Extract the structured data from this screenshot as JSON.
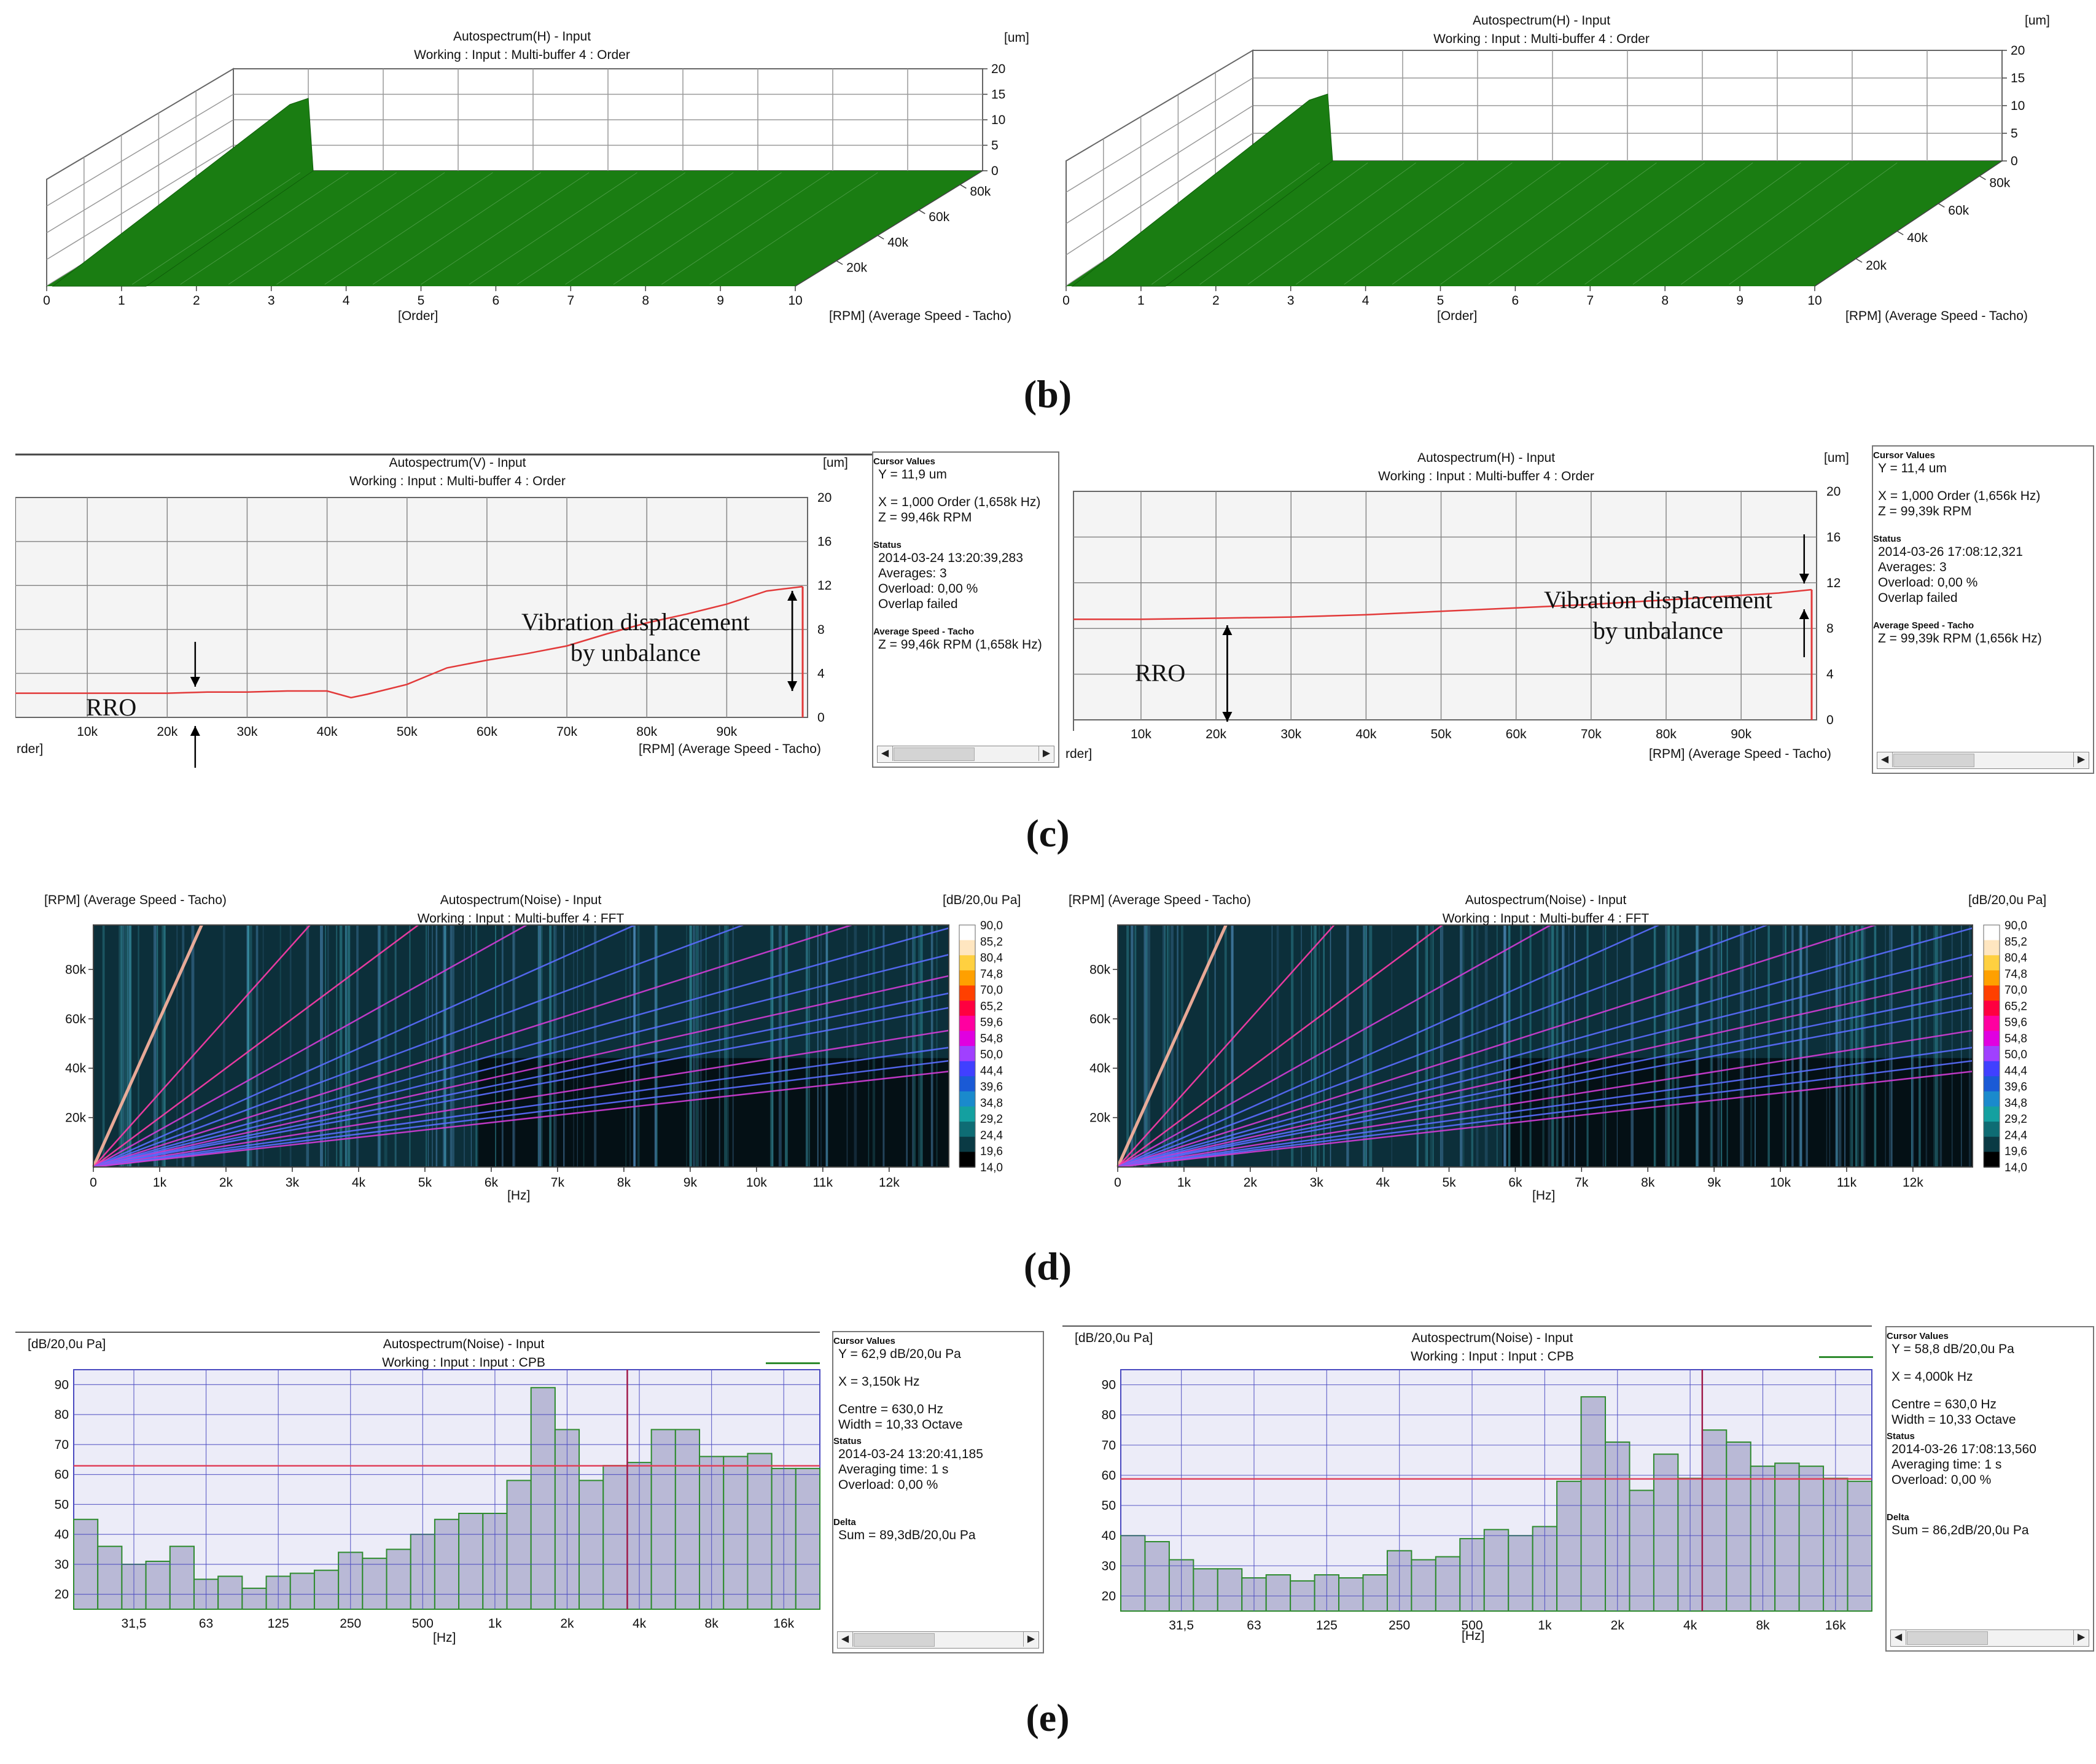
{
  "figure_labels": {
    "b": "(b)",
    "c": "(c)",
    "d": "(d)",
    "e": "(e)"
  },
  "colors": {
    "surface": "#1a7d12",
    "trace_red": "#e23a3a",
    "bar_fill": "#b9b9d6",
    "bar_edge": "#2e8b2e",
    "grid": "#7a7a7a",
    "spec_bg": "#0c2f3a"
  },
  "annotations": {
    "c_left_vib": "Vibration displacement\nby unbalance",
    "c_left_rro": "RRO",
    "c_right_vib": "Vibration displacement\nby unbalance",
    "c_right_rro": "RRO"
  },
  "chart_data": [
    {
      "id": "b_left",
      "type": "area",
      "title": "Autospectrum(H) - Input",
      "subtitle": "Working : Input : Multi-buffer 4 : Order",
      "zlabel": "[um]",
      "xlabel": "[Order]",
      "ylabel": "[RPM] (Average Speed - Tacho)",
      "x_ticks": [
        "0",
        "1",
        "2",
        "3",
        "4",
        "5",
        "6",
        "7",
        "8",
        "9",
        "10"
      ],
      "z_ticks": [
        "0",
        "5",
        "10",
        "15",
        "20"
      ],
      "y_ticks": [
        "20k",
        "40k",
        "60k",
        "80k"
      ],
      "peak": {
        "order": 1,
        "rpm_k": 99,
        "amplitude_um": 13
      }
    },
    {
      "id": "b_right",
      "type": "area",
      "title": "Autospectrum(H) - Input",
      "subtitle": "Working : Input : Multi-buffer 4 : Order",
      "zlabel": "[um]",
      "xlabel": "[Order]",
      "ylabel": "[RPM] (Average Speed - Tacho)",
      "x_ticks": [
        "0",
        "1",
        "2",
        "3",
        "4",
        "5",
        "6",
        "7",
        "8",
        "9",
        "10"
      ],
      "z_ticks": [
        "0",
        "5",
        "10",
        "15",
        "20"
      ],
      "y_ticks": [
        "20k",
        "40k",
        "60k",
        "80k"
      ],
      "peak": {
        "order": 1,
        "rpm_k": 99,
        "amplitude_um": 11
      }
    },
    {
      "id": "c_left",
      "type": "line",
      "title": "Autospectrum(V) - Input",
      "subtitle": "Working : Input : Multi-buffer 4 : Order",
      "unit": "[um]",
      "xlabel": "[RPM] (Average Speed - Tacho)",
      "xlabel_left": "rder]",
      "x_ticks": [
        "10k",
        "20k",
        "30k",
        "40k",
        "50k",
        "60k",
        "70k",
        "80k",
        "90k"
      ],
      "y_ticks": [
        "0",
        "4",
        "8",
        "12",
        "16",
        "20"
      ],
      "xlim": [
        1,
        99.5
      ],
      "ylim": [
        0,
        20
      ],
      "x": [
        1,
        10,
        20,
        25,
        30,
        35,
        40,
        43,
        45,
        50,
        55,
        60,
        65,
        70,
        75,
        80,
        85,
        90,
        95,
        99.5
      ],
      "y": [
        2.2,
        2.2,
        2.2,
        2.3,
        2.3,
        2.4,
        2.4,
        1.8,
        2.1,
        3.0,
        4.5,
        5.2,
        5.8,
        6.5,
        7.6,
        8.6,
        9.4,
        10.3,
        11.5,
        11.9
      ],
      "cursor": {
        "header": "Cursor Values",
        "y": "Y = 11,9 um",
        "x": "X = 1,000 Order  (1,658k Hz)",
        "z": "Z = 99,46k RPM"
      },
      "status": {
        "header": "Status",
        "date": "2014-03-24  13:20:39,283",
        "averages": "Averages: 3",
        "overload": "Overload:   0,00 %",
        "overlap": "Overlap failed"
      },
      "speed": {
        "header": "Average Speed - Tacho",
        "z": "Z = 99,46k RPM (1,658k Hz)"
      }
    },
    {
      "id": "c_right",
      "type": "line",
      "title": "Autospectrum(H) - Input",
      "subtitle": "Working : Input : Multi-buffer 4 : Order",
      "unit": "[um]",
      "xlabel": "[RPM] (Average Speed - Tacho)",
      "xlabel_left": "rder]",
      "x_ticks": [
        "10k",
        "20k",
        "30k",
        "40k",
        "50k",
        "60k",
        "70k",
        "80k",
        "90k"
      ],
      "y_ticks": [
        "0",
        "4",
        "8",
        "12",
        "16",
        "20"
      ],
      "xlim": [
        1,
        99.4
      ],
      "ylim": [
        0,
        20
      ],
      "x": [
        1,
        10,
        20,
        30,
        40,
        50,
        60,
        70,
        80,
        90,
        95,
        99.4
      ],
      "y": [
        8.8,
        8.8,
        8.9,
        9.0,
        9.2,
        9.5,
        9.8,
        10.1,
        10.5,
        10.9,
        11.1,
        11.4
      ],
      "cursor": {
        "header": "Cursor Values",
        "y": "Y = 11,4 um",
        "x": "X = 1,000 Order  (1,656k Hz)",
        "z": "Z = 99,39k RPM"
      },
      "status": {
        "header": "Status",
        "date": "2014-03-26  17:08:12,321",
        "averages": "Averages: 3",
        "overload": "Overload:   0,00 %",
        "overlap": "Overlap failed"
      },
      "speed": {
        "header": "Average Speed - Tacho",
        "z": "Z = 99,39k RPM (1,656k Hz)"
      }
    },
    {
      "id": "d_left",
      "type": "heatmap",
      "title": "Autospectrum(Noise) - Input",
      "subtitle": "Working : Input : Multi-buffer 4 : FFT",
      "ylabel_top": "[RPM] (Average Speed - Tacho)",
      "unit": "[dB/20,0u Pa]",
      "xlabel": "[Hz]",
      "x_ticks": [
        "0",
        "1k",
        "2k",
        "3k",
        "4k",
        "5k",
        "6k",
        "7k",
        "8k",
        "9k",
        "10k",
        "11k",
        "12k"
      ],
      "y_ticks": [
        "20k",
        "40k",
        "60k",
        "80k"
      ],
      "colorbar_ticks": [
        "90,0",
        "85,2",
        "80,4",
        "74,8",
        "70,0",
        "65,2",
        "59,6",
        "54,8",
        "50,0",
        "44,4",
        "39,6",
        "34,8",
        "29,2",
        "24,4",
        "19,6",
        "14,0"
      ],
      "xlim": [
        0,
        12900
      ],
      "ylim": [
        0,
        98000
      ]
    },
    {
      "id": "d_right",
      "type": "heatmap",
      "title": "Autospectrum(Noise) - Input",
      "subtitle": "Working : Input : Multi-buffer 4 : FFT",
      "ylabel_top": "[RPM] (Average Speed - Tacho)",
      "unit": "[dB/20,0u Pa]",
      "xlabel": "[Hz]",
      "x_ticks": [
        "0",
        "1k",
        "2k",
        "3k",
        "4k",
        "5k",
        "6k",
        "7k",
        "8k",
        "9k",
        "10k",
        "11k",
        "12k"
      ],
      "y_ticks": [
        "20k",
        "40k",
        "60k",
        "80k"
      ],
      "colorbar_ticks": [
        "90,0",
        "85,2",
        "80,4",
        "74,8",
        "70,0",
        "65,2",
        "59,6",
        "54,8",
        "50,0",
        "44,4",
        "39,6",
        "34,8",
        "29,2",
        "24,4",
        "19,6",
        "14,0"
      ],
      "xlim": [
        0,
        12900
      ],
      "ylim": [
        0,
        98000
      ]
    },
    {
      "id": "e_left",
      "type": "bar",
      "title": "Autospectrum(Noise) - Input",
      "subtitle": "Working : Input : Input : CPB",
      "unit": "[dB/20,0u Pa]",
      "xlabel": "[Hz]",
      "x_ticks": [
        "31,5",
        "63",
        "125",
        "250",
        "500",
        "1k",
        "2k",
        "4k",
        "8k",
        "16k"
      ],
      "y_ticks": [
        "20",
        "30",
        "40",
        "50",
        "60",
        "70",
        "80",
        "90"
      ],
      "ylim": [
        15,
        95
      ],
      "values": [
        45,
        36,
        30,
        31,
        36,
        25,
        26,
        22,
        26,
        27,
        28,
        34,
        32,
        35,
        40,
        45,
        47,
        47,
        58,
        89,
        75,
        58,
        63,
        64,
        75,
        75,
        66,
        66,
        67,
        62,
        62
      ],
      "cursor_line": 62.9,
      "cursor_x_index": 22.5,
      "cursor": {
        "header": "Cursor Values",
        "y": "Y = 62,9 dB/20,0u Pa",
        "x": "X = 3,150k Hz",
        "centre": "Centre = 630,0 Hz",
        "width": "Width = 10,33 Octave"
      },
      "status": {
        "header": "Status",
        "date": "2014-03-24  13:20:41,185",
        "avg": "Averaging time:        1 s",
        "overload": "Overload:   0,00 %"
      },
      "delta": {
        "header": "Delta",
        "sum": "Sum = 89,3dB/20,0u Pa"
      }
    },
    {
      "id": "e_right",
      "type": "bar",
      "title": "Autospectrum(Noise) - Input",
      "subtitle": "Working : Input : Input : CPB",
      "unit": "[dB/20,0u Pa]",
      "xlabel": "[Hz]",
      "x_ticks": [
        "31,5",
        "63",
        "125",
        "250",
        "500",
        "1k",
        "2k",
        "4k",
        "8k",
        "16k"
      ],
      "y_ticks": [
        "20",
        "30",
        "40",
        "50",
        "60",
        "70",
        "80",
        "90"
      ],
      "ylim": [
        15,
        95
      ],
      "values": [
        40,
        38,
        32,
        29,
        29,
        26,
        27,
        25,
        27,
        26,
        27,
        35,
        32,
        33,
        39,
        42,
        40,
        43,
        58,
        86,
        71,
        55,
        67,
        59,
        75,
        71,
        63,
        64,
        63,
        59,
        58
      ],
      "cursor_line": 58.8,
      "cursor_x_index": 23.5,
      "cursor": {
        "header": "Cursor Values",
        "y": "Y = 58,8 dB/20,0u Pa",
        "x": "X = 4,000k Hz",
        "centre": "Centre = 630,0 Hz",
        "width": "Width = 10,33 Octave"
      },
      "status": {
        "header": "Status",
        "date": "2014-03-26  17:08:13,560",
        "avg": "Averaging time:        1 s",
        "overload": "Overload:   0,00 %"
      },
      "delta": {
        "header": "Delta",
        "sum": "Sum = 86,2dB/20,0u Pa"
      }
    }
  ]
}
